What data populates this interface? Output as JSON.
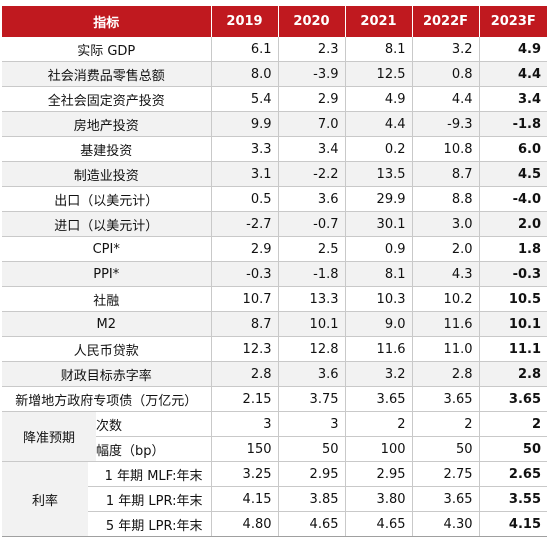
{
  "header": [
    "指标",
    "2019",
    "2020",
    "2021",
    "2022F",
    "2023F"
  ],
  "rows": [
    {
      "label": "实际 GDP",
      "values": [
        "6.1",
        "2.3",
        "8.1",
        "3.2",
        "4.9"
      ]
    },
    {
      "label": "社会消费品零售总额",
      "values": [
        "8.0",
        "-3.9",
        "12.5",
        "0.8",
        "4.4"
      ]
    },
    {
      "label": "全社会固定资产投资",
      "values": [
        "5.4",
        "2.9",
        "4.9",
        "4.4",
        "3.4"
      ]
    },
    {
      "label": "房地产投资",
      "values": [
        "9.9",
        "7.0",
        "4.4",
        "-9.3",
        "-1.8"
      ]
    },
    {
      "label": "基建投资",
      "values": [
        "3.3",
        "3.4",
        "0.2",
        "10.8",
        "6.0"
      ]
    },
    {
      "label": "制造业投资",
      "values": [
        "3.1",
        "-2.2",
        "13.5",
        "8.7",
        "4.5"
      ]
    },
    {
      "label": "出口（以美元计）",
      "values": [
        "0.5",
        "3.6",
        "29.9",
        "8.8",
        "-4.0"
      ]
    },
    {
      "label": "进口（以美元计）",
      "values": [
        "-2.7",
        "-0.7",
        "30.1",
        "3.0",
        "2.0"
      ]
    },
    {
      "label": "CPI*",
      "values": [
        "2.9",
        "2.5",
        "0.9",
        "2.0",
        "1.8"
      ]
    },
    {
      "label": "PPI*",
      "values": [
        "-0.3",
        "-1.8",
        "8.1",
        "4.3",
        "-0.3"
      ]
    },
    {
      "label": "社融",
      "values": [
        "10.7",
        "13.3",
        "10.3",
        "10.2",
        "10.5"
      ]
    },
    {
      "label": "M2",
      "values": [
        "8.7",
        "10.1",
        "9.0",
        "11.6",
        "10.1"
      ]
    },
    {
      "label": "人民币贷款",
      "values": [
        "12.3",
        "12.8",
        "11.6",
        "11.0",
        "11.1"
      ]
    },
    {
      "label": "财政目标赤字率",
      "values": [
        "2.8",
        "3.6",
        "3.2",
        "2.8",
        "2.8"
      ]
    },
    {
      "label": "新增地方政府专项债（万亿元）",
      "values": [
        "2.15",
        "3.75",
        "3.65",
        "3.65",
        "3.65"
      ]
    }
  ],
  "rrr": {
    "group": "降准预期",
    "rows": [
      {
        "label": "次数",
        "values": [
          "3",
          "3",
          "2",
          "2",
          "2"
        ]
      },
      {
        "label": "幅度（bp）",
        "values": [
          "150",
          "50",
          "100",
          "50",
          "50"
        ]
      }
    ]
  },
  "rates": {
    "group": "利率",
    "rows": [
      {
        "label": "1 年期 MLF:年末",
        "values": [
          "3.25",
          "2.95",
          "2.95",
          "2.75",
          "2.65"
        ]
      },
      {
        "label": "1 年期 LPR:年末",
        "values": [
          "4.15",
          "3.85",
          "3.80",
          "3.65",
          "3.55"
        ]
      },
      {
        "label": "5 年期 LPR:年末",
        "values": [
          "4.80",
          "4.65",
          "4.65",
          "4.30",
          "4.15"
        ]
      }
    ]
  }
}
